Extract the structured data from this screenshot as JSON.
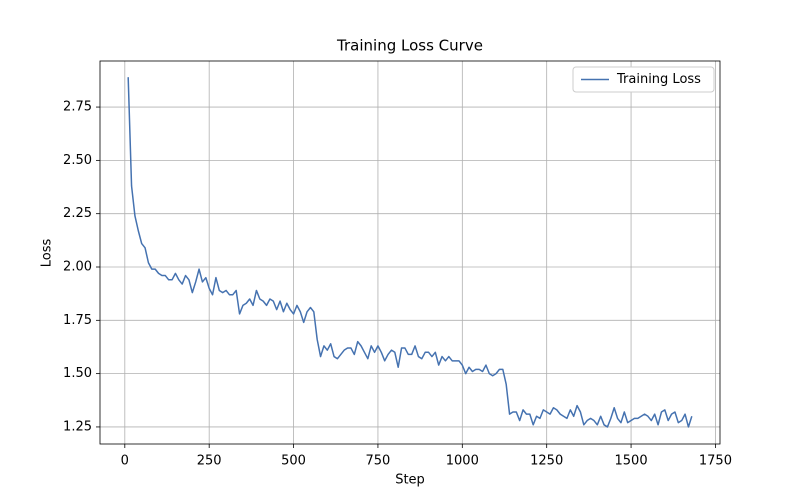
{
  "chart_data": {
    "type": "line",
    "title": "Training Loss Curve",
    "xlabel": "Step",
    "ylabel": "Loss",
    "x": [
      10,
      20,
      30,
      40,
      50,
      60,
      70,
      80,
      90,
      100,
      110,
      120,
      130,
      140,
      150,
      160,
      170,
      180,
      190,
      200,
      210,
      220,
      230,
      240,
      250,
      260,
      270,
      280,
      290,
      300,
      310,
      320,
      330,
      340,
      350,
      360,
      370,
      380,
      390,
      400,
      410,
      420,
      430,
      440,
      450,
      460,
      470,
      480,
      490,
      500,
      510,
      520,
      530,
      540,
      550,
      560,
      570,
      580,
      590,
      600,
      610,
      620,
      630,
      640,
      650,
      660,
      670,
      680,
      690,
      700,
      710,
      720,
      730,
      740,
      750,
      760,
      770,
      780,
      790,
      800,
      810,
      820,
      830,
      840,
      850,
      860,
      870,
      880,
      890,
      900,
      910,
      920,
      930,
      940,
      950,
      960,
      970,
      980,
      990,
      1000,
      1010,
      1020,
      1030,
      1040,
      1050,
      1060,
      1070,
      1080,
      1090,
      1100,
      1110,
      1120,
      1130,
      1140,
      1150,
      1160,
      1170,
      1180,
      1190,
      1200,
      1210,
      1220,
      1230,
      1240,
      1250,
      1260,
      1270,
      1280,
      1290,
      1300,
      1310,
      1320,
      1330,
      1340,
      1350,
      1360,
      1370,
      1380,
      1390,
      1400,
      1410,
      1420,
      1430,
      1440,
      1450,
      1460,
      1470,
      1480,
      1490,
      1500,
      1510,
      1520,
      1530,
      1540,
      1550,
      1560,
      1570,
      1580,
      1590,
      1600,
      1610,
      1620,
      1630,
      1640,
      1650,
      1660,
      1670,
      1680
    ],
    "series": [
      {
        "name": "Training Loss",
        "color": "#4572b0",
        "values": [
          2.89,
          2.38,
          2.24,
          2.17,
          2.11,
          2.09,
          2.02,
          1.99,
          1.99,
          1.97,
          1.96,
          1.96,
          1.94,
          1.94,
          1.97,
          1.94,
          1.92,
          1.96,
          1.94,
          1.88,
          1.93,
          1.99,
          1.93,
          1.95,
          1.9,
          1.87,
          1.95,
          1.89,
          1.88,
          1.89,
          1.87,
          1.87,
          1.89,
          1.78,
          1.82,
          1.83,
          1.85,
          1.82,
          1.89,
          1.85,
          1.84,
          1.82,
          1.85,
          1.84,
          1.8,
          1.84,
          1.79,
          1.83,
          1.8,
          1.78,
          1.82,
          1.79,
          1.74,
          1.79,
          1.81,
          1.79,
          1.66,
          1.58,
          1.63,
          1.61,
          1.64,
          1.58,
          1.57,
          1.59,
          1.61,
          1.62,
          1.62,
          1.59,
          1.65,
          1.63,
          1.6,
          1.57,
          1.63,
          1.6,
          1.63,
          1.6,
          1.56,
          1.59,
          1.61,
          1.6,
          1.53,
          1.62,
          1.62,
          1.59,
          1.59,
          1.63,
          1.58,
          1.57,
          1.6,
          1.6,
          1.58,
          1.6,
          1.54,
          1.58,
          1.56,
          1.58,
          1.56,
          1.56,
          1.56,
          1.54,
          1.5,
          1.53,
          1.51,
          1.52,
          1.52,
          1.51,
          1.54,
          1.5,
          1.49,
          1.5,
          1.52,
          1.52,
          1.45,
          1.31,
          1.32,
          1.32,
          1.28,
          1.33,
          1.31,
          1.31,
          1.26,
          1.3,
          1.29,
          1.33,
          1.32,
          1.31,
          1.34,
          1.33,
          1.31,
          1.3,
          1.29,
          1.33,
          1.3,
          1.35,
          1.32,
          1.26,
          1.28,
          1.29,
          1.28,
          1.26,
          1.3,
          1.26,
          1.25,
          1.29,
          1.34,
          1.29,
          1.27,
          1.32,
          1.27,
          1.28,
          1.29,
          1.29,
          1.3,
          1.31,
          1.3,
          1.28,
          1.31,
          1.26,
          1.32,
          1.33,
          1.28,
          1.31,
          1.32,
          1.27,
          1.28,
          1.31,
          1.25,
          1.3
        ]
      }
    ],
    "xlim": [
      -73.5,
      1763.5
    ],
    "xticks": [
      0,
      250,
      500,
      750,
      1000,
      1250,
      1500,
      1750
    ],
    "ylim": [
      1.17,
      2.966
    ],
    "yticks": [
      1.25,
      {
        "value": 1.5,
        "label": "1.50"
      },
      1.75,
      {
        "value": 2,
        "label": "2.00"
      },
      2.25,
      {
        "value": 2.5,
        "label": "2.50"
      },
      2.75
    ],
    "grid": true,
    "legend": "upper right"
  }
}
